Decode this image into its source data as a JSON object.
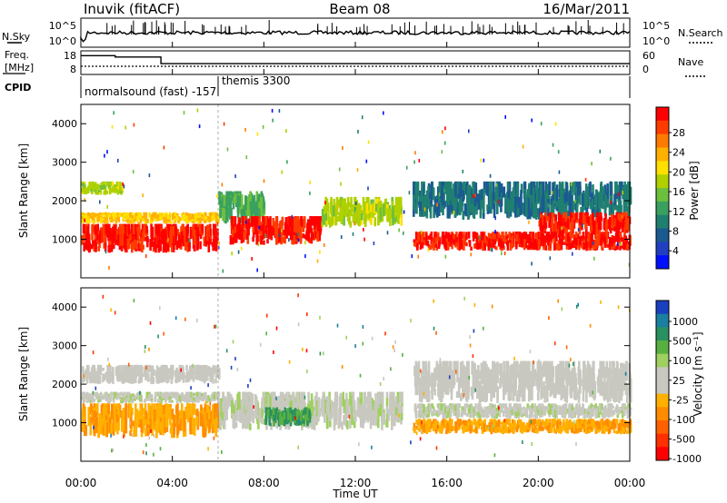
{
  "header": {
    "station": "Inuvik (fitACF)",
    "beam": "Beam 08",
    "date": "16/Mar/2011"
  },
  "panels": {
    "nsky": {
      "left_label": "N.Sky",
      "right_label": "N.Search",
      "left_ticks": [
        "10^5",
        "10^0"
      ],
      "right_ticks": [
        "10^5",
        "10^0"
      ]
    },
    "freq": {
      "left_label_1": "Freq.",
      "left_label_2": "[MHz]",
      "right_label": "Nave",
      "left_ticks": [
        "18",
        "8"
      ],
      "right_ticks": [
        "60",
        "0"
      ]
    },
    "cpid": {
      "label": "CPID",
      "modes": [
        "normalsound (fast) -157",
        "themis 3300"
      ]
    }
  },
  "power_panel": {
    "ylabel": "Slant Range [km]",
    "colorbar_label": "Power [dB]",
    "colorbar_ticks": [
      "28",
      "24",
      "20",
      "16",
      "12",
      "8",
      "4"
    ],
    "colorbar_colors": [
      "#ff0000",
      "#ff3c00",
      "#ff7a00",
      "#ffb000",
      "#ffe000",
      "#b0d000",
      "#6cc03c",
      "#3aa060",
      "#208070",
      "#1a5a90",
      "#2040c0",
      "#0010ff"
    ],
    "yticks": [
      "4000",
      "3000",
      "2000",
      "1000"
    ]
  },
  "velocity_panel": {
    "ylabel": "Slant Range [km]",
    "colorbar_label": "Velocity [m s⁻¹]",
    "colorbar_ticks": [
      "1000",
      "500",
      "100",
      "25",
      "-25",
      "-100",
      "-500",
      "-1000"
    ],
    "colorbar_colors": [
      "#1a40c0",
      "#1a7fa0",
      "#2a9060",
      "#58b040",
      "#9fd060",
      "#c8c8c0",
      "#c8c8c0",
      "#ffb000",
      "#ff8c00",
      "#ff6000",
      "#ff3000",
      "#ff0000"
    ],
    "yticks": [
      "4000",
      "3000",
      "2000",
      "1000"
    ]
  },
  "xaxis": {
    "label": "Time UT",
    "ticks": [
      "00:00",
      "04:00",
      "08:00",
      "12:00",
      "16:00",
      "20:00",
      "00:00"
    ]
  },
  "chart_data": {
    "type": "heatmap",
    "title": "Inuvik (fitACF)  Beam 08  16/Mar/2011",
    "xlabel": "Time UT",
    "ylabel": "Slant Range [km]",
    "xlim_hours": [
      0,
      24
    ],
    "ylim_km": [
      0,
      4500
    ],
    "panels": [
      {
        "name": "Power [dB]",
        "color_range": [
          0,
          30
        ],
        "regions": [
          {
            "t": [
              0,
              6
            ],
            "r": [
              650,
              1400
            ],
            "value": 28
          },
          {
            "t": [
              0,
              6
            ],
            "r": [
              1400,
              1700
            ],
            "value": 20
          },
          {
            "t": [
              0,
              1.8
            ],
            "r": [
              2150,
              2500
            ],
            "value": 16
          },
          {
            "t": [
              6,
              8
            ],
            "r": [
              1400,
              2250
            ],
            "value": 12
          },
          {
            "t": [
              6.5,
              10.5
            ],
            "r": [
              850,
              1600
            ],
            "value": 28
          },
          {
            "t": [
              10.5,
              14
            ],
            "r": [
              1300,
              2100
            ],
            "value": 16
          },
          {
            "t": [
              14.5,
              24
            ],
            "r": [
              700,
              1200
            ],
            "value": 28
          },
          {
            "t": [
              14.5,
              24
            ],
            "r": [
              1500,
              2500
            ],
            "value": 8
          },
          {
            "t": [
              20,
              24
            ],
            "r": [
              1100,
              1700
            ],
            "value": 28
          }
        ]
      },
      {
        "name": "Velocity [m s⁻¹]",
        "color_range": [
          -1000,
          1000
        ],
        "regions": [
          {
            "t": [
              0,
              6
            ],
            "r": [
              600,
              1500
            ],
            "value": -300
          },
          {
            "t": [
              0,
              6
            ],
            "r": [
              1500,
              1800
            ],
            "value": 100
          },
          {
            "t": [
              0,
              6
            ],
            "r": [
              2000,
              2500
            ],
            "value": 0
          },
          {
            "t": [
              6,
              14
            ],
            "r": [
              800,
              1800
            ],
            "value": 100
          },
          {
            "t": [
              8,
              10
            ],
            "r": [
              900,
              1400
            ],
            "value": 500
          },
          {
            "t": [
              14.5,
              24
            ],
            "r": [
              700,
              1100
            ],
            "value": -300
          },
          {
            "t": [
              14.5,
              24
            ],
            "r": [
              1100,
              1500
            ],
            "value": 100
          },
          {
            "t": [
              14.5,
              24
            ],
            "r": [
              1500,
              2600
            ],
            "value": 0
          }
        ]
      }
    ],
    "frequency_mhz": [
      {
        "t": [
          0,
          1.5
        ],
        "value": 16.5
      },
      {
        "t": [
          1.5,
          3.5
        ],
        "value": 15.8
      },
      {
        "t": [
          3.5,
          24
        ],
        "value": 12.5
      }
    ],
    "cpid_modes": [
      {
        "t": [
          0,
          6
        ],
        "label": "normalsound (fast) -157"
      },
      {
        "t": [
          6,
          24
        ],
        "label": "themis 3300"
      }
    ]
  }
}
